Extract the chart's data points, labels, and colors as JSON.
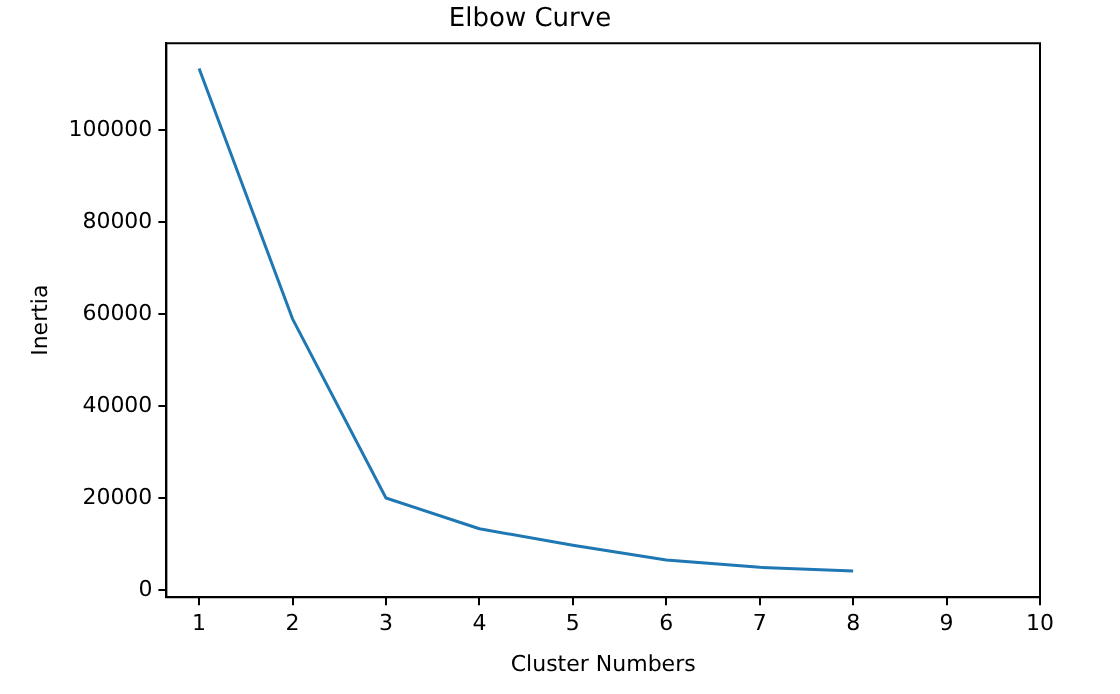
{
  "chart_data": {
    "type": "line",
    "title": "Elbow Curve",
    "xlabel": "Cluster Numbers",
    "ylabel": "Inertia",
    "x": [
      1,
      2,
      3,
      4,
      5,
      6,
      7,
      8
    ],
    "series": [
      {
        "color": "#1f77b4",
        "values": [
          113500,
          59000,
          20000,
          13300,
          9700,
          6500,
          4900,
          4100
        ]
      }
    ],
    "xlim": [
      0.65,
      10
    ],
    "xticks": [
      1,
      2,
      3,
      4,
      5,
      6,
      7,
      8,
      9,
      10
    ],
    "ylim": [
      -1600,
      119000
    ],
    "yticks": [
      0,
      20000,
      40000,
      60000,
      80000,
      100000
    ],
    "grid": false,
    "legend": false,
    "marker": "none",
    "line_style": "solid"
  }
}
